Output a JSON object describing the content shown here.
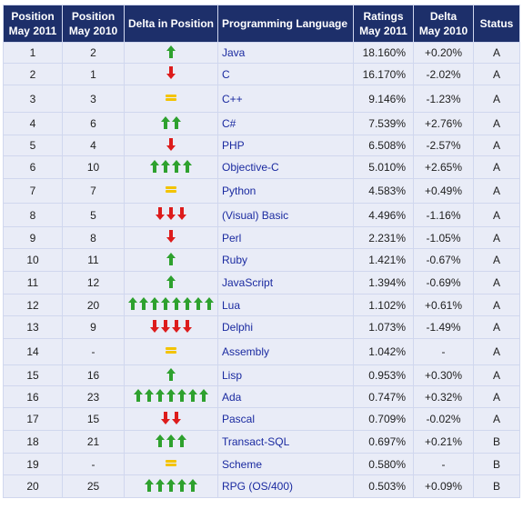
{
  "header": {
    "pos2011": "Position\nMay 2011",
    "pos2010": "Position\nMay 2010",
    "delta_position": "Delta in Position",
    "language": "Programming Language",
    "ratings": "Ratings\nMay 2011",
    "delta": "Delta\nMay 2010",
    "status": "Status"
  },
  "colors": {
    "header_bg": "#1d2f6a",
    "row_bg": "#e9ecf7",
    "up_arrow": "#2ea12e",
    "down_arrow": "#dd1c1c",
    "equal_sign": "#f3c300",
    "language_text": "#1a2aa0"
  },
  "rows": [
    {
      "pos2011": "1",
      "pos2010": "2",
      "delta_type": "up",
      "delta_count": 1,
      "language": "Java",
      "rating": "18.160%",
      "delta": "+0.20%",
      "status": "A"
    },
    {
      "pos2011": "2",
      "pos2010": "1",
      "delta_type": "down",
      "delta_count": 1,
      "language": "C",
      "rating": "16.170%",
      "delta": "-2.02%",
      "status": "A"
    },
    {
      "pos2011": "3",
      "pos2010": "3",
      "delta_type": "equal",
      "delta_count": 1,
      "language": "C++",
      "rating": "9.146%",
      "delta": "-1.23%",
      "status": "A"
    },
    {
      "pos2011": "4",
      "pos2010": "6",
      "delta_type": "up",
      "delta_count": 2,
      "language": "C#",
      "rating": "7.539%",
      "delta": "+2.76%",
      "status": "A"
    },
    {
      "pos2011": "5",
      "pos2010": "4",
      "delta_type": "down",
      "delta_count": 1,
      "language": "PHP",
      "rating": "6.508%",
      "delta": "-2.57%",
      "status": "A"
    },
    {
      "pos2011": "6",
      "pos2010": "10",
      "delta_type": "up",
      "delta_count": 4,
      "language": "Objective-C",
      "rating": "5.010%",
      "delta": "+2.65%",
      "status": "A"
    },
    {
      "pos2011": "7",
      "pos2010": "7",
      "delta_type": "equal",
      "delta_count": 1,
      "language": "Python",
      "rating": "4.583%",
      "delta": "+0.49%",
      "status": "A"
    },
    {
      "pos2011": "8",
      "pos2010": "5",
      "delta_type": "down",
      "delta_count": 3,
      "language": "(Visual) Basic",
      "rating": "4.496%",
      "delta": "-1.16%",
      "status": "A"
    },
    {
      "pos2011": "9",
      "pos2010": "8",
      "delta_type": "down",
      "delta_count": 1,
      "language": "Perl",
      "rating": "2.231%",
      "delta": "-1.05%",
      "status": "A"
    },
    {
      "pos2011": "10",
      "pos2010": "11",
      "delta_type": "up",
      "delta_count": 1,
      "language": "Ruby",
      "rating": "1.421%",
      "delta": "-0.67%",
      "status": "A"
    },
    {
      "pos2011": "11",
      "pos2010": "12",
      "delta_type": "up",
      "delta_count": 1,
      "language": "JavaScript",
      "rating": "1.394%",
      "delta": "-0.69%",
      "status": "A"
    },
    {
      "pos2011": "12",
      "pos2010": "20",
      "delta_type": "up",
      "delta_count": 8,
      "language": "Lua",
      "rating": "1.102%",
      "delta": "+0.61%",
      "status": "A"
    },
    {
      "pos2011": "13",
      "pos2010": "9",
      "delta_type": "down",
      "delta_count": 4,
      "language": "Delphi",
      "rating": "1.073%",
      "delta": "-1.49%",
      "status": "A"
    },
    {
      "pos2011": "14",
      "pos2010": "-",
      "delta_type": "equal",
      "delta_count": 1,
      "language": "Assembly",
      "rating": "1.042%",
      "delta": "-",
      "status": "A"
    },
    {
      "pos2011": "15",
      "pos2010": "16",
      "delta_type": "up",
      "delta_count": 1,
      "language": "Lisp",
      "rating": "0.953%",
      "delta": "+0.30%",
      "status": "A"
    },
    {
      "pos2011": "16",
      "pos2010": "23",
      "delta_type": "up",
      "delta_count": 7,
      "language": "Ada",
      "rating": "0.747%",
      "delta": "+0.32%",
      "status": "A"
    },
    {
      "pos2011": "17",
      "pos2010": "15",
      "delta_type": "down",
      "delta_count": 2,
      "language": "Pascal",
      "rating": "0.709%",
      "delta": "-0.02%",
      "status": "A"
    },
    {
      "pos2011": "18",
      "pos2010": "21",
      "delta_type": "up",
      "delta_count": 3,
      "language": "Transact-SQL",
      "rating": "0.697%",
      "delta": "+0.21%",
      "status": "B"
    },
    {
      "pos2011": "19",
      "pos2010": "-",
      "delta_type": "equal",
      "delta_count": 1,
      "language": "Scheme",
      "rating": "0.580%",
      "delta": "-",
      "status": "B"
    },
    {
      "pos2011": "20",
      "pos2010": "25",
      "delta_type": "up",
      "delta_count": 5,
      "language": "RPG (OS/400)",
      "rating": "0.503%",
      "delta": "+0.09%",
      "status": "B"
    }
  ]
}
